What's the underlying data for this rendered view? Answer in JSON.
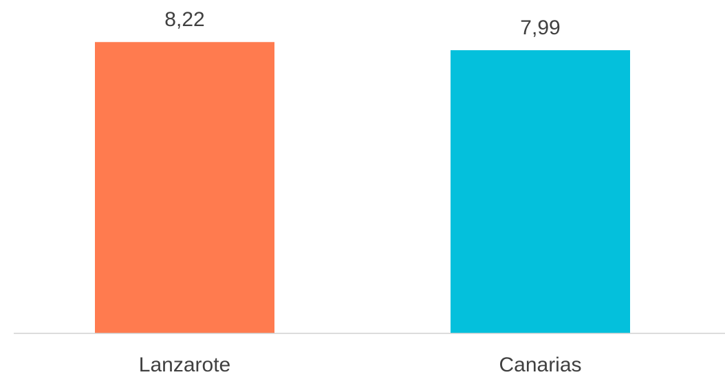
{
  "chart_data": {
    "type": "bar",
    "categories": [
      "Lanzarote",
      "Canarias"
    ],
    "values": [
      8.22,
      7.99
    ],
    "value_labels": [
      "8,22",
      "7,99"
    ],
    "colors": [
      "#ff7b4f",
      "#04c0dc"
    ]
  }
}
